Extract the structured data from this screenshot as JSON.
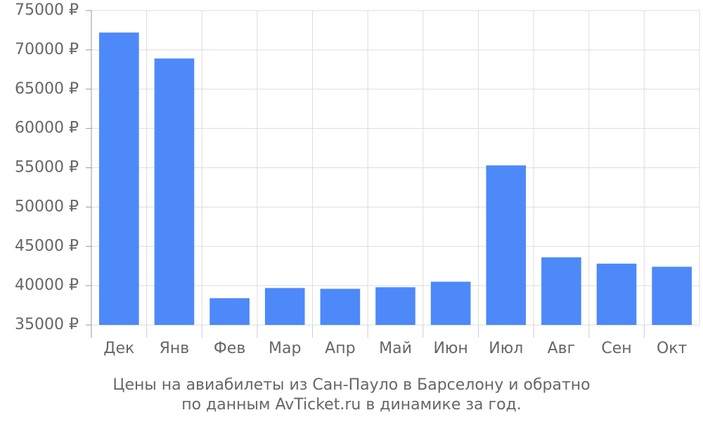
{
  "chart_data": {
    "type": "bar",
    "title": "Цены на авиабилеты из Сан-Пауло в Барселону и обратно",
    "subtitle": "по данным AvTicket.ru в динамике за год.",
    "categories": [
      "Дек",
      "Янв",
      "Фев",
      "Мар",
      "Апр",
      "Май",
      "Июн",
      "Июл",
      "Авг",
      "Сен",
      "Окт"
    ],
    "values": [
      72200,
      68900,
      38400,
      39700,
      39600,
      39800,
      40500,
      55300,
      43600,
      42800,
      42400
    ],
    "color": "#4d89f9",
    "ylim": [
      35000,
      75000
    ],
    "yticks": [
      {
        "value": 35000,
        "label": "35000 ₽"
      },
      {
        "value": 40000,
        "label": "40000 ₽"
      },
      {
        "value": 45000,
        "label": "45000 ₽"
      },
      {
        "value": 50000,
        "label": "50000 ₽"
      },
      {
        "value": 55000,
        "label": "55000 ₽"
      },
      {
        "value": 60000,
        "label": "60000 ₽"
      },
      {
        "value": 65000,
        "label": "65000 ₽"
      },
      {
        "value": 70000,
        "label": "70000 ₽"
      },
      {
        "value": 75000,
        "label": "75000 ₽"
      }
    ],
    "grid": true
  }
}
